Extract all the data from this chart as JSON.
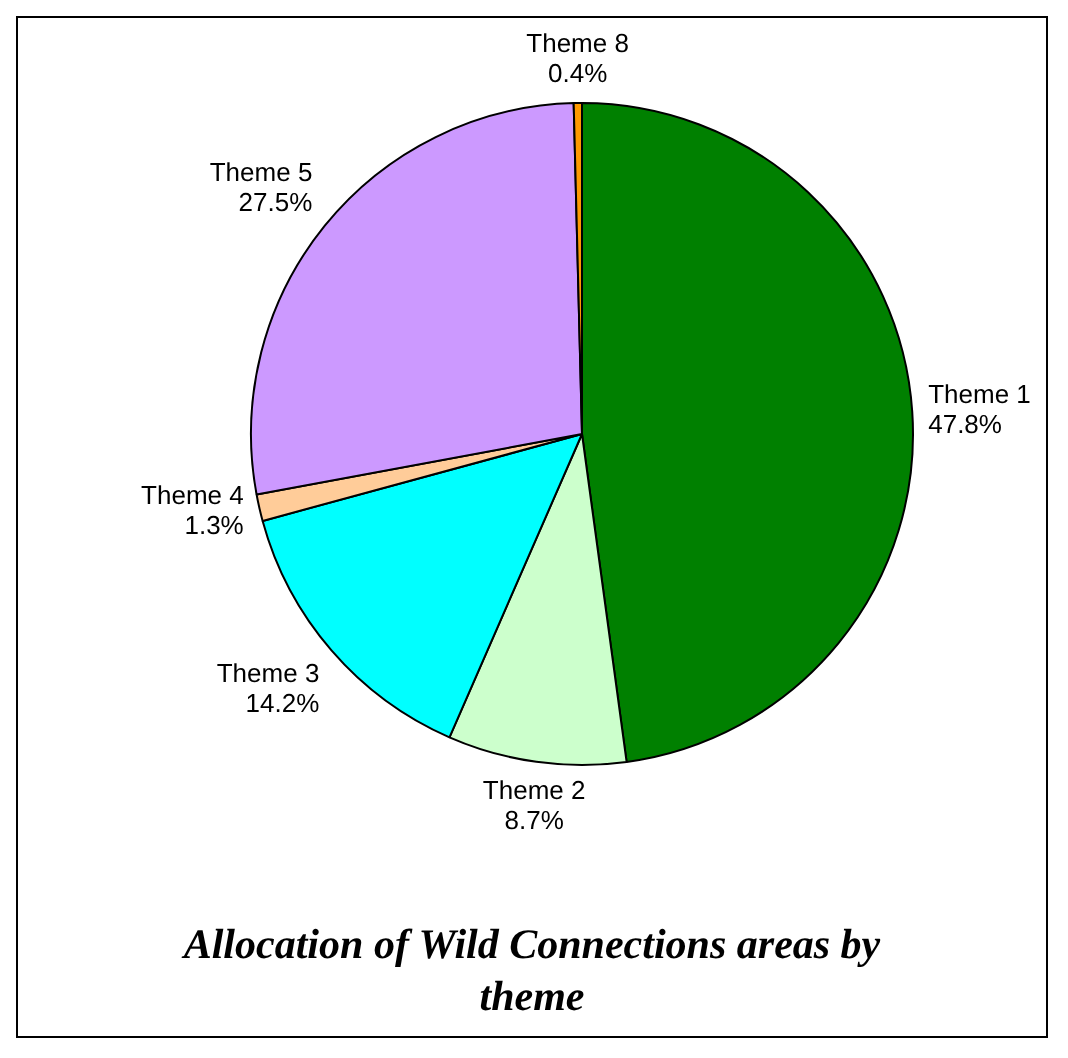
{
  "chart_data": {
    "type": "pie",
    "title": "Allocation of Wild Connections areas by theme",
    "categories": [
      "Theme 1",
      "Theme 2",
      "Theme 3",
      "Theme 4",
      "Theme 5",
      "Theme 8"
    ],
    "values": [
      47.8,
      8.7,
      14.2,
      1.3,
      27.5,
      0.4
    ],
    "colors": [
      "#008000",
      "#ccffcc",
      "#00ffff",
      "#ffcc99",
      "#cc99ff",
      "#ff9900"
    ],
    "value_labels": [
      "47.8%",
      "8.7%",
      "14.2%",
      "1.3%",
      "27.5%",
      "0.4%"
    ],
    "legend": false
  }
}
